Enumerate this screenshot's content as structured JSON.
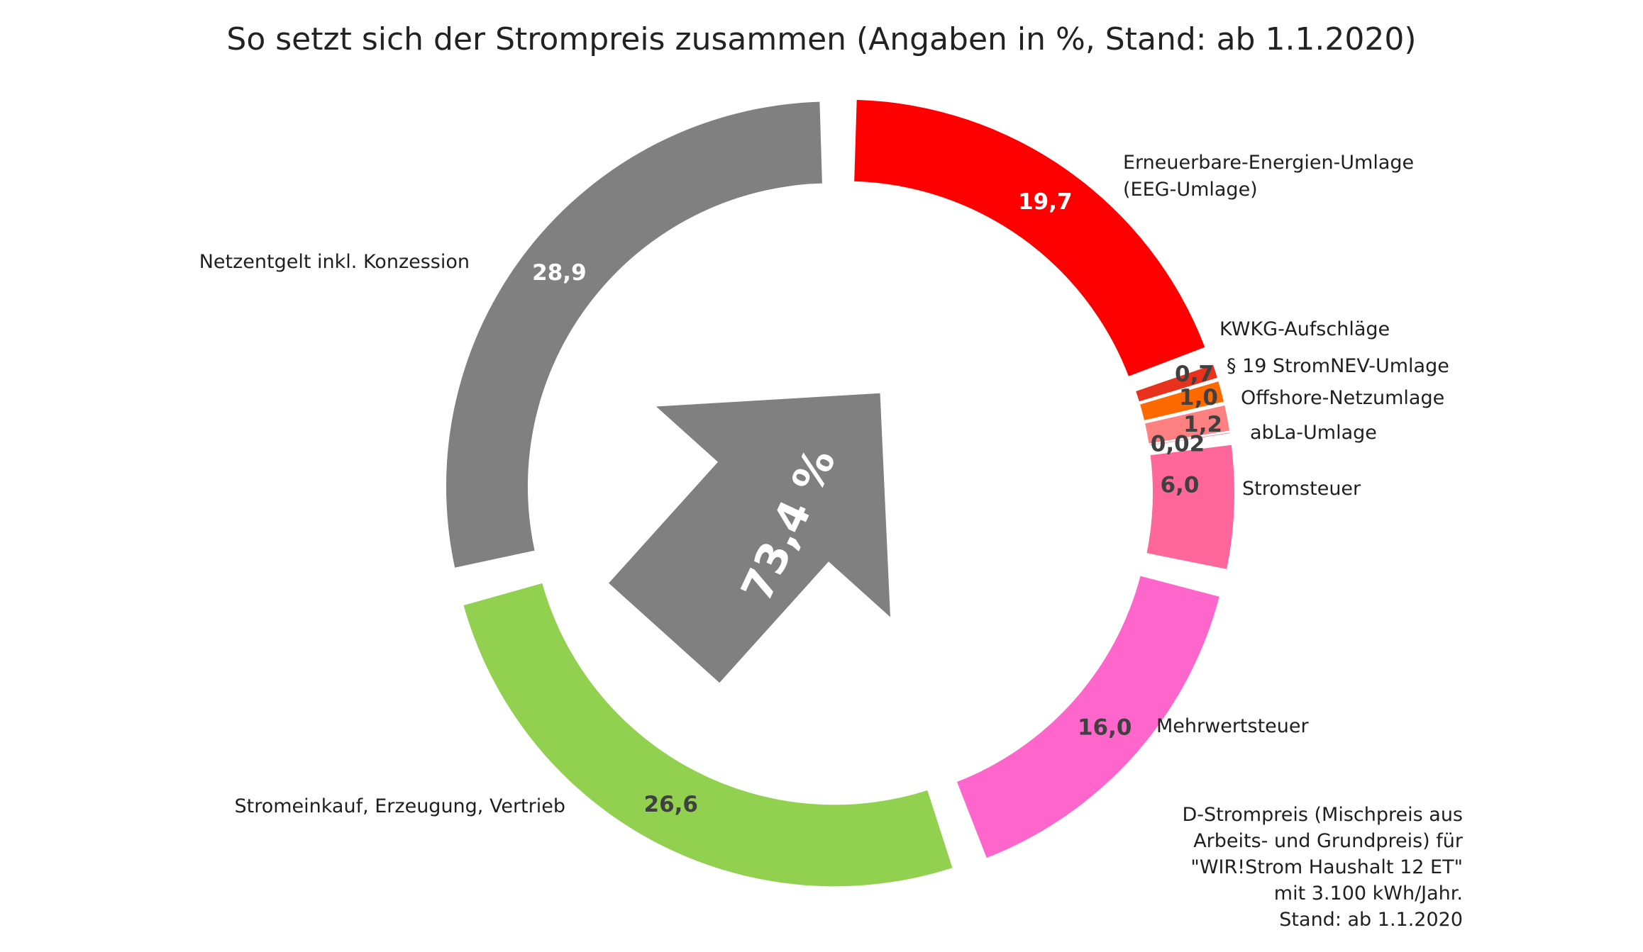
{
  "chart_data": {
    "type": "pie",
    "variant": "donut",
    "title": "So setzt sich der Strompreis zusammen (Angaben in %, Stand: ab 1.1.2020)",
    "slices": [
      {
        "label": "Erneuerbare-Energien-Umlage (EEG-Umlage)",
        "label_lines": [
          "Erneuerbare-Energien-Umlage",
          "(EEG-Umlage)"
        ],
        "value_label": "19,7",
        "value": 19.7,
        "color": "#ff0000",
        "value_color": "#ffffff"
      },
      {
        "label": "KWKG-Aufschläge",
        "label_lines": [
          "KWKG-Aufschläge"
        ],
        "value_label": "0,7",
        "value": 0.7,
        "color": "#e8321e",
        "value_color": "#404040"
      },
      {
        "label": "§ 19 StromNEV-Umlage",
        "label_lines": [
          "§ 19 StromNEV-Umlage"
        ],
        "value_label": "1,0",
        "value": 1.0,
        "color": "#ff6a00",
        "value_color": "#404040"
      },
      {
        "label": "Offshore-Netzumlage",
        "label_lines": [
          "Offshore-Netzumlage"
        ],
        "value_label": "1,2",
        "value": 1.2,
        "color": "#ff8080",
        "value_color": "#404040"
      },
      {
        "label": "abLa-Umlage",
        "label_lines": [
          "abLa-Umlage"
        ],
        "value_label": "0,02",
        "value": 0.02,
        "color": "#ff6699",
        "value_color": "#404040"
      },
      {
        "label": "Stromsteuer",
        "label_lines": [
          "Stromsteuer"
        ],
        "value_label": "6,0",
        "value": 6.0,
        "color": "#ff6699",
        "value_color": "#404040"
      },
      {
        "label": "Mehrwertsteuer",
        "label_lines": [
          "Mehrwertsteuer"
        ],
        "value_label": "16,0",
        "value": 16.0,
        "color": "#ff66cc",
        "value_color": "#404040"
      },
      {
        "label": "Stromeinkauf, Erzeugung, Vertrieb",
        "label_lines": [
          "Stromeinkauf, Erzeugung, Vertrieb"
        ],
        "value_label": "26,6",
        "value": 26.6,
        "color": "#92d050",
        "value_color": "#404040"
      },
      {
        "label": "Netzentgelt inkl. Konzession",
        "label_lines": [
          "Netzentgelt inkl. Konzession"
        ],
        "value_label": "28,9",
        "value": 28.9,
        "color": "#808080",
        "value_color": "#ffffff"
      }
    ],
    "arrow_label": "73,4 %",
    "arrow_color": "#808080",
    "note_lines": [
      "D-Strompreis (Mischpreis aus",
      "Arbeits- und Grundpreis) für",
      "\"WIR!Strom Haushalt 12 ET\"",
      "mit 3.100 kWh/Jahr.",
      "Stand: ab 1.1.2020"
    ],
    "legend": "none",
    "grid": false
  }
}
